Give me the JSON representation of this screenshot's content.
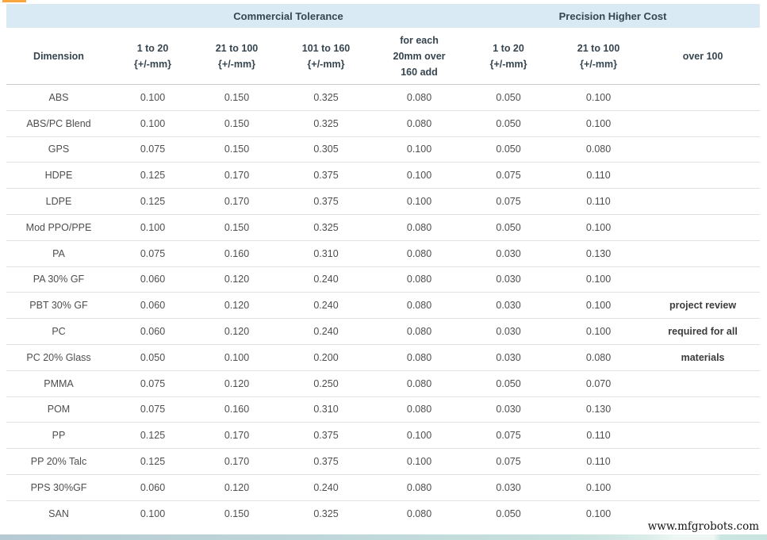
{
  "table": {
    "group_headers": {
      "commercial": "Commercial Tolerance",
      "precision": "Precision Higher Cost"
    },
    "columns": [
      {
        "id": "dimension",
        "lines": [
          "Dimension"
        ]
      },
      {
        "id": "com-1-to-20",
        "lines": [
          "1 to 20",
          "{+/-mm}"
        ]
      },
      {
        "id": "com-21-to-100",
        "lines": [
          "21 to 100",
          "{+/-mm}"
        ]
      },
      {
        "id": "com-101-to-160",
        "lines": [
          "101 to 160",
          "{+/-mm}"
        ]
      },
      {
        "id": "per-20mm-over-160",
        "lines": [
          "for each",
          "20mm over",
          "160 add"
        ]
      },
      {
        "id": "pre-1-to-20",
        "lines": [
          "1 to 20",
          "{+/-mm}"
        ]
      },
      {
        "id": "pre-21-to-100",
        "lines": [
          "21 to 100",
          "{+/-mm}"
        ]
      },
      {
        "id": "over-100",
        "lines": [
          "over 100"
        ]
      }
    ],
    "rows": [
      {
        "material": "ABS",
        "values": [
          "0.100",
          "0.150",
          "0.325",
          "0.080",
          "0.050",
          "0.100"
        ],
        "note": ""
      },
      {
        "material": "ABS/PC Blend",
        "values": [
          "0.100",
          "0.150",
          "0.325",
          "0.080",
          "0.050",
          "0.100"
        ],
        "note": ""
      },
      {
        "material": "GPS",
        "values": [
          "0.075",
          "0.150",
          "0.305",
          "0.100",
          "0.050",
          "0.080"
        ],
        "note": ""
      },
      {
        "material": "HDPE",
        "values": [
          "0.125",
          "0.170",
          "0.375",
          "0.100",
          "0.075",
          "0.110"
        ],
        "note": ""
      },
      {
        "material": "LDPE",
        "values": [
          "0.125",
          "0.170",
          "0.375",
          "0.100",
          "0.075",
          "0.110"
        ],
        "note": ""
      },
      {
        "material": "Mod PPO/PPE",
        "values": [
          "0.100",
          "0.150",
          "0.325",
          "0.080",
          "0.050",
          "0.100"
        ],
        "note": ""
      },
      {
        "material": "PA",
        "values": [
          "0.075",
          "0.160",
          "0.310",
          "0.080",
          "0.030",
          "0.130"
        ],
        "note": ""
      },
      {
        "material": "PA 30% GF",
        "values": [
          "0.060",
          "0.120",
          "0.240",
          "0.080",
          "0.030",
          "0.100"
        ],
        "note": ""
      },
      {
        "material": "PBT 30% GF",
        "values": [
          "0.060",
          "0.120",
          "0.240",
          "0.080",
          "0.030",
          "0.100"
        ],
        "note": "project review"
      },
      {
        "material": "PC",
        "values": [
          "0.060",
          "0.120",
          "0.240",
          "0.080",
          "0.030",
          "0.100"
        ],
        "note": "required for all"
      },
      {
        "material": "PC 20% Glass",
        "values": [
          "0.050",
          "0.100",
          "0.200",
          "0.080",
          "0.030",
          "0.080"
        ],
        "note": "materials"
      },
      {
        "material": "PMMA",
        "values": [
          "0.075",
          "0.120",
          "0.250",
          "0.080",
          "0.050",
          "0.070"
        ],
        "note": ""
      },
      {
        "material": "POM",
        "values": [
          "0.075",
          "0.160",
          "0.310",
          "0.080",
          "0.030",
          "0.130"
        ],
        "note": ""
      },
      {
        "material": "PP",
        "values": [
          "0.125",
          "0.170",
          "0.375",
          "0.100",
          "0.075",
          "0.110"
        ],
        "note": ""
      },
      {
        "material": "PP 20% Talc",
        "values": [
          "0.125",
          "0.170",
          "0.375",
          "0.100",
          "0.075",
          "0.110"
        ],
        "note": ""
      },
      {
        "material": "PPS 30%GF",
        "values": [
          "0.060",
          "0.120",
          "0.240",
          "0.080",
          "0.030",
          "0.100"
        ],
        "note": ""
      },
      {
        "material": "SAN",
        "values": [
          "0.100",
          "0.150",
          "0.325",
          "0.080",
          "0.050",
          "0.100"
        ],
        "note": ""
      }
    ]
  },
  "watermark": "www.mfgrobots.com",
  "colors": {
    "header_band": "#d9eaf5",
    "accent_orange": "#f9a640",
    "header_text": "#36454f",
    "body_text": "#4e4e4e",
    "row_border": "#e2e2e2",
    "bottom_bar_left": "#b5cad3",
    "bottom_bar_right": "#c9e4df"
  }
}
